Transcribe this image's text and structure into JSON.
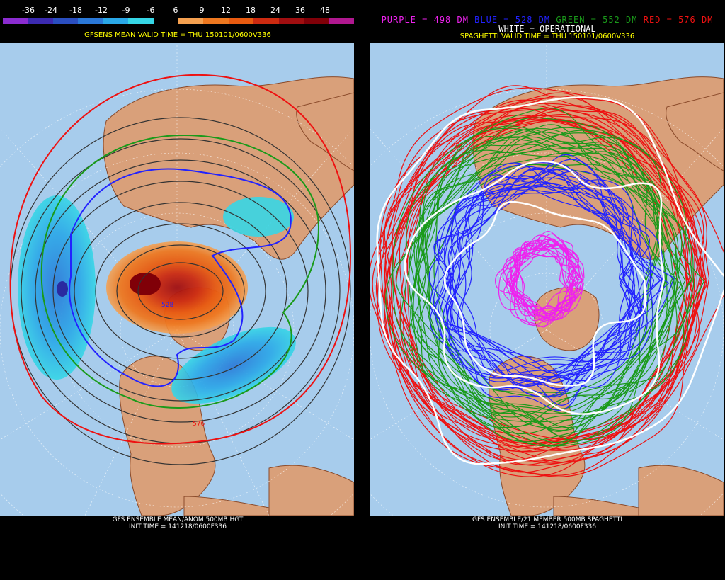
{
  "left": {
    "colorbar": {
      "labels": [
        "-36",
        "-24",
        "-18",
        "-12",
        "-9",
        "-6",
        "6",
        "9",
        "12",
        "18",
        "24",
        "36",
        "48"
      ],
      "colors": [
        "#8b2cd0",
        "#3b2ab0",
        "#2a4ec0",
        "#2a78d8",
        "#2aa8e8",
        "#36d6e6",
        "#000000",
        "#f5a050",
        "#ee7820",
        "#e85a10",
        "#cc2a10",
        "#a00e10",
        "#800008",
        "#b01890"
      ]
    },
    "valid_time": "GFSENS MEAN VALID TIME = THU 150101/0600V336",
    "caption_line1": "GFS ENSEMBLE MEAN/ANOM 500MB HGT",
    "caption_line2": "INIT TIME = 141218/0600F336",
    "contour_labels": [
      "576",
      "528"
    ]
  },
  "right": {
    "legend": {
      "purple": "PURPLE = 498 DM",
      "blue": "BLUE = 528 DM",
      "green": "GREEN = 552 DM",
      "red": "RED = 576 DM",
      "white": "WHITE = OPERATIONAL"
    },
    "colors": {
      "purple": "#ee22ee",
      "blue": "#2222ff",
      "green": "#1a9a1a",
      "red": "#ee1111",
      "white": "#ffffff"
    },
    "valid_time": "SPAGHETTI VALID TIME = THU 150101/0600V336",
    "caption_line1": "GFS ENSEMBLE/21 MEMBER 500MB SPAGHETTI",
    "caption_line2": "INIT TIME = 141218/0600F336"
  },
  "colors": {
    "ocean": "#a7ccec",
    "land": "#d9a07a",
    "border": "#8a4a2a",
    "grid": "#ffffff"
  }
}
